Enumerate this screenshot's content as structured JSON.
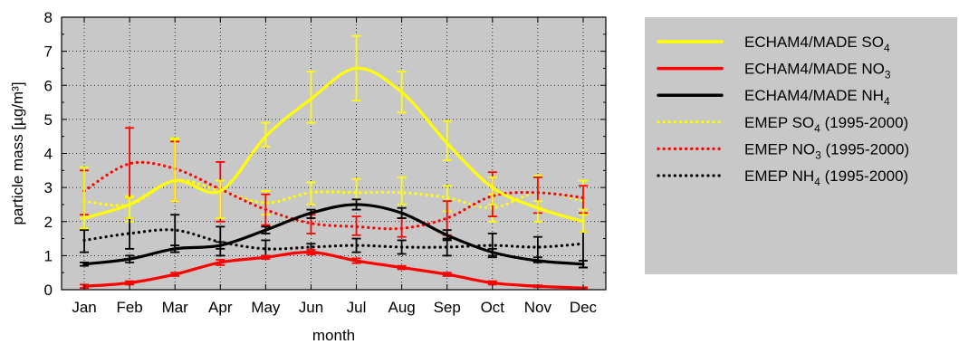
{
  "chart_data": {
    "type": "line",
    "xlabel": "month",
    "ylabel": "particle mass [µg/m³]",
    "categories": [
      "Jan",
      "Feb",
      "Mar",
      "Apr",
      "May",
      "Jun",
      "Jul",
      "Aug",
      "Sep",
      "Oct",
      "Nov",
      "Dec"
    ],
    "ylim": [
      0,
      8
    ],
    "yticks": [
      "0",
      "1",
      "2",
      "3",
      "4",
      "5",
      "6",
      "7",
      "8"
    ],
    "grid": true,
    "background": "#c8c8c8",
    "legend_position": "right",
    "series": [
      {
        "label_main": "ECHAM4/MADE SO",
        "label_sub": "4",
        "label_tail": "",
        "color": "#ffff00",
        "style": "solid",
        "values": [
          2.1,
          2.5,
          3.2,
          2.9,
          4.5,
          5.6,
          6.5,
          5.8,
          4.3,
          3.0,
          2.4,
          2.0
        ],
        "err_low": [
          1.8,
          2.1,
          2.6,
          2.1,
          4.2,
          4.9,
          5.55,
          5.2,
          3.8,
          2.5,
          2.0,
          1.7
        ],
        "err_high": [
          3.6,
          2.7,
          4.45,
          3.2,
          4.9,
          6.4,
          7.45,
          6.4,
          4.95,
          3.3,
          2.6,
          2.35
        ]
      },
      {
        "label_main": "ECHAM4/MADE NO",
        "label_sub": "3",
        "label_tail": "",
        "color": "#ff0000",
        "style": "solid",
        "values": [
          0.1,
          0.2,
          0.45,
          0.8,
          0.95,
          1.1,
          0.85,
          0.65,
          0.45,
          0.2,
          0.1,
          0.05
        ],
        "err_low": [
          0.05,
          0.15,
          0.4,
          0.72,
          0.9,
          1.03,
          0.78,
          0.6,
          0.4,
          0.15,
          0.07,
          0.03
        ],
        "err_high": [
          0.15,
          0.25,
          0.5,
          0.88,
          1.0,
          1.17,
          0.92,
          0.7,
          0.5,
          0.25,
          0.13,
          0.07
        ]
      },
      {
        "label_main": "ECHAM4/MADE NH",
        "label_sub": "4",
        "label_tail": "",
        "color": "#000000",
        "style": "solid",
        "values": [
          0.75,
          0.9,
          1.2,
          1.3,
          1.75,
          2.25,
          2.5,
          2.25,
          1.6,
          1.1,
          0.85,
          0.75
        ],
        "err_low": [
          0.7,
          0.8,
          1.1,
          1.2,
          1.65,
          2.1,
          2.35,
          2.1,
          1.45,
          1.0,
          0.8,
          0.65
        ],
        "err_high": [
          0.8,
          1.0,
          1.3,
          1.4,
          1.85,
          2.35,
          2.65,
          2.4,
          1.75,
          1.2,
          0.95,
          0.85
        ]
      },
      {
        "label_main": "EMEP SO",
        "label_sub": "4",
        "label_tail": " (1995-2000)",
        "color": "#ffff00",
        "style": "dotted",
        "values": [
          2.6,
          2.5,
          3.2,
          2.9,
          2.55,
          2.85,
          2.85,
          2.85,
          2.7,
          2.4,
          2.85,
          2.6
        ],
        "err_low": [
          2.1,
          2.0,
          2.6,
          2.1,
          2.2,
          2.5,
          2.5,
          2.5,
          2.3,
          2.0,
          2.4,
          2.2
        ],
        "err_high": [
          3.5,
          2.75,
          4.4,
          3.2,
          2.9,
          3.15,
          3.25,
          3.3,
          3.05,
          2.8,
          3.35,
          3.2
        ]
      },
      {
        "label_main": "EMEP NO",
        "label_sub": "3",
        "label_tail": " (1995-2000)",
        "color": "#ff0000",
        "style": "dotted",
        "values": [
          2.9,
          3.7,
          3.55,
          2.95,
          2.35,
          1.95,
          1.85,
          1.8,
          2.1,
          2.75,
          2.85,
          2.7
        ],
        "err_low": [
          2.2,
          2.7,
          2.6,
          2.0,
          1.9,
          1.65,
          1.6,
          1.55,
          1.6,
          2.15,
          2.25,
          2.25
        ],
        "err_high": [
          3.5,
          4.75,
          4.35,
          3.75,
          2.8,
          2.2,
          2.15,
          2.1,
          2.6,
          3.45,
          3.3,
          3.05
        ]
      },
      {
        "label_main": "EMEP NH",
        "label_sub": "4",
        "label_tail": " (1995-2000)",
        "color": "#000000",
        "style": "dotted",
        "values": [
          1.45,
          1.65,
          1.75,
          1.4,
          1.2,
          1.25,
          1.3,
          1.25,
          1.25,
          1.3,
          1.25,
          1.35
        ],
        "err_low": [
          1.1,
          1.2,
          1.1,
          1.0,
          1.0,
          1.1,
          1.1,
          1.05,
          1.0,
          0.95,
          0.85,
          0.65
        ],
        "err_high": [
          1.75,
          2.1,
          2.2,
          1.85,
          1.45,
          1.35,
          1.5,
          1.45,
          1.5,
          1.65,
          1.55,
          1.7
        ]
      }
    ]
  }
}
